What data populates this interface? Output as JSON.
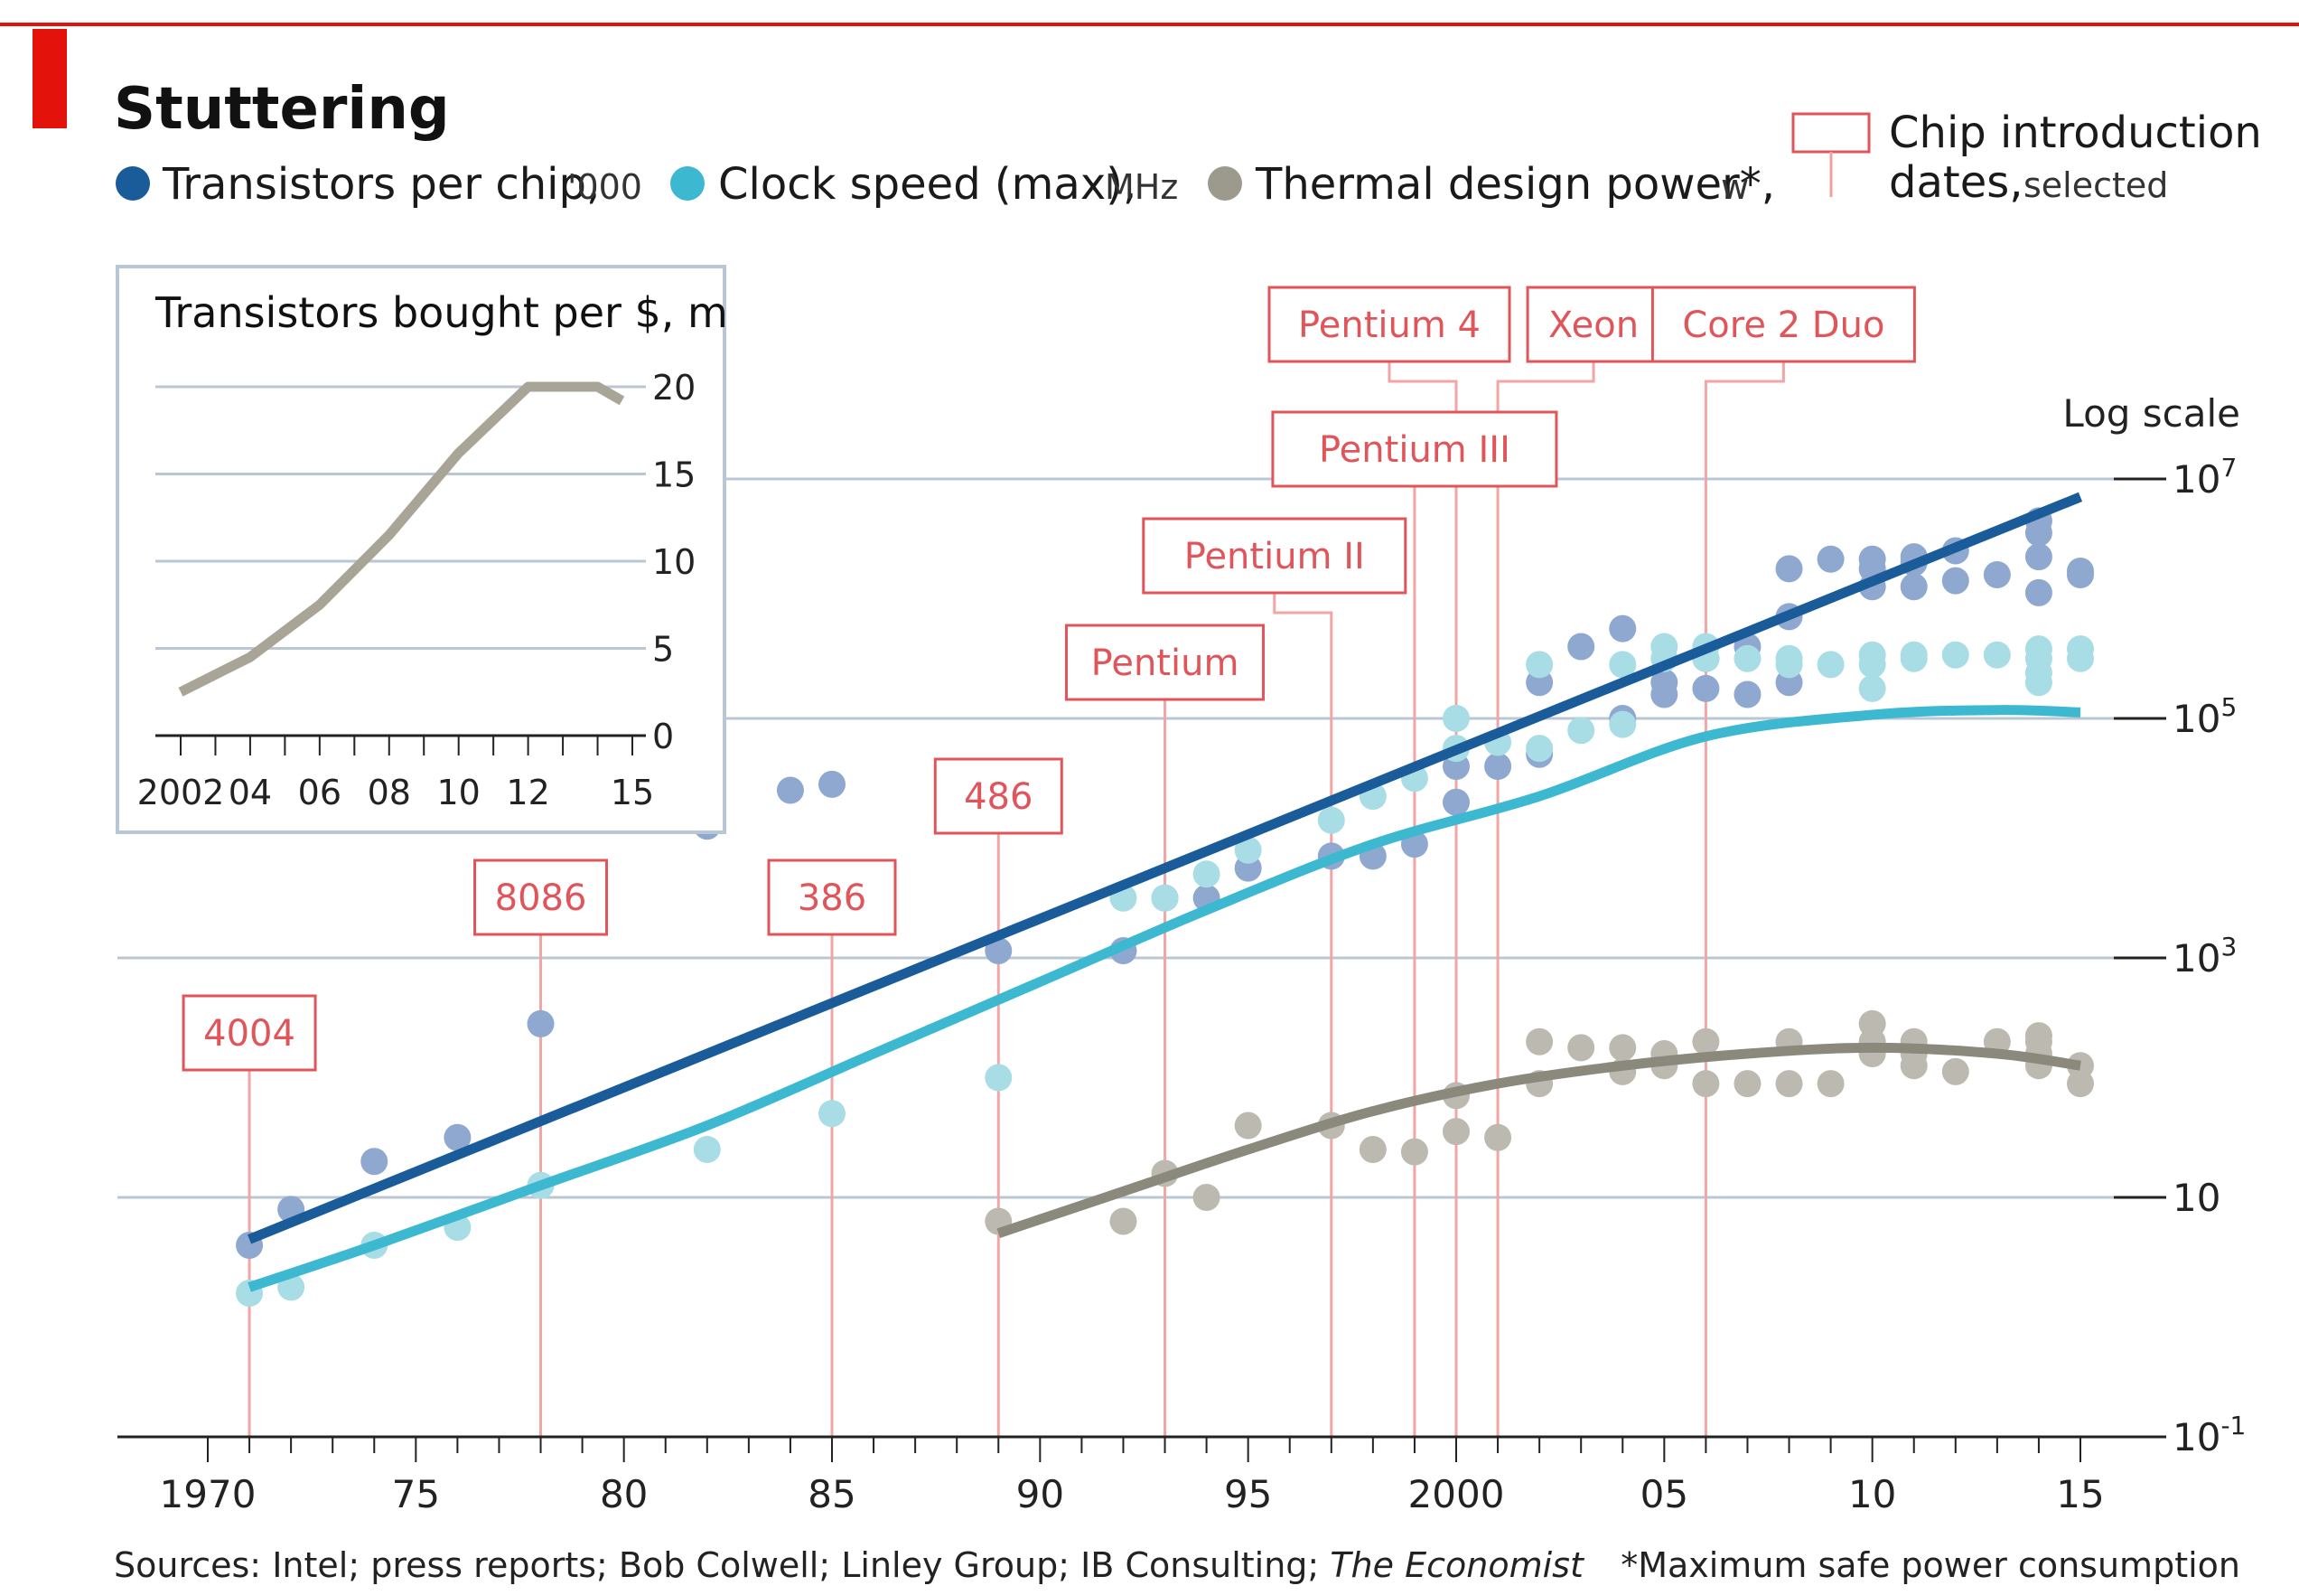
{
  "title": "Stuttering",
  "legend": [
    {
      "label": "Transistors per chip,",
      "unit": "'000",
      "color": "#1a5c9a"
    },
    {
      "label": "Clock speed (max),",
      "unit": "MHz",
      "color": "#3cb8d0"
    },
    {
      "label": "Thermal design power*,",
      "unit": "w",
      "color": "#9b9a8c"
    }
  ],
  "chip_legend": {
    "line1": "Chip introduction",
    "line2_bold": "dates,",
    "line2_rest": "selected"
  },
  "log_scale_label": "Log scale",
  "source": "Sources: Intel; press reports; Bob Colwell; Linley Group; IB Consulting;",
  "source_italic": "The Economist",
  "footnote": "*Maximum safe power consumption",
  "colors": {
    "accent_red": "#e3120b",
    "chip_red": "#e0555a",
    "grid": "#b8c7d3",
    "transistor_line": "#1a5c9a",
    "transistor_dot": "#8fa8d0",
    "clock_line": "#3cb8d0",
    "clock_dot": "#a8dde6",
    "power_line": "#8a897c",
    "power_dot": "#bcbab0",
    "inset_line": "#a8a597",
    "inset_border": "#b8c7d3"
  },
  "chart_data": [
    {
      "type": "scatter",
      "log_y": true,
      "xlim": [
        1970,
        2015
      ],
      "ylim_exp": [
        -1,
        7
      ],
      "x_ticks": [
        1970,
        1975,
        1980,
        1985,
        1990,
        1995,
        2000,
        2005,
        2010,
        2015
      ],
      "x_tick_labels": [
        "1970",
        "75",
        "80",
        "85",
        "90",
        "95",
        "2000",
        "05",
        "10",
        "15"
      ],
      "y_ticks_exp": [
        -1,
        1,
        3,
        5,
        7
      ],
      "y_tick_labels": [
        {
          "base": "10",
          "exp": "-1"
        },
        {
          "base": "10",
          "exp": ""
        },
        {
          "base": "10",
          "exp": "3"
        },
        {
          "base": "10",
          "exp": "5"
        },
        {
          "base": "10",
          "exp": "7"
        }
      ],
      "chips": [
        {
          "name": "4004",
          "year": 1971
        },
        {
          "name": "8086",
          "year": 1978
        },
        {
          "name": "386",
          "year": 1985
        },
        {
          "name": "486",
          "year": 1989
        },
        {
          "name": "Pentium",
          "year": 1993
        },
        {
          "name": "Pentium II",
          "year": 1997
        },
        {
          "name": "Pentium III",
          "year": 1999
        },
        {
          "name": "Pentium 4",
          "year": 2000
        },
        {
          "name": "Xeon",
          "year": 2001
        },
        {
          "name": "Core 2 Duo",
          "year": 2006
        }
      ],
      "series": [
        {
          "key": "transistors",
          "trend": [
            [
              1971,
              0.65
            ],
            [
              2015,
              6.85
            ]
          ],
          "points": [
            [
              1971,
              0.6
            ],
            [
              1972,
              0.9
            ],
            [
              1974,
              1.3
            ],
            [
              1976,
              1.5
            ],
            [
              1978,
              2.45
            ],
            [
              1982,
              4.1
            ],
            [
              1984,
              4.4
            ],
            [
              1985,
              4.45
            ],
            [
              1989,
              3.06
            ],
            [
              1992,
              3.06
            ],
            [
              1993,
              3.5
            ],
            [
              1994,
              3.5
            ],
            [
              1995,
              3.75
            ],
            [
              1997,
              3.85
            ],
            [
              1998,
              3.85
            ],
            [
              1999,
              3.95
            ],
            [
              2000,
              4.3
            ],
            [
              2000,
              4.6
            ],
            [
              2001,
              4.6
            ],
            [
              2002,
              4.7
            ],
            [
              2002,
              5.3
            ],
            [
              2003,
              5.6
            ],
            [
              2004,
              5.0
            ],
            [
              2004,
              5.75
            ],
            [
              2005,
              5.2
            ],
            [
              2005,
              5.3
            ],
            [
              2006,
              5.25
            ],
            [
              2006,
              5.5
            ],
            [
              2007,
              5.2
            ],
            [
              2007,
              5.6
            ],
            [
              2008,
              5.3
            ],
            [
              2008,
              5.85
            ],
            [
              2008,
              6.25
            ],
            [
              2009,
              6.33
            ],
            [
              2010,
              6.1
            ],
            [
              2010,
              6.25
            ],
            [
              2010,
              6.33
            ],
            [
              2011,
              6.1
            ],
            [
              2011,
              6.3
            ],
            [
              2011,
              6.35
            ],
            [
              2012,
              6.15
            ],
            [
              2012,
              6.4
            ],
            [
              2013,
              6.2
            ],
            [
              2014,
              6.05
            ],
            [
              2014,
              6.35
            ],
            [
              2014,
              6.55
            ],
            [
              2014,
              6.65
            ],
            [
              2015,
              6.2
            ],
            [
              2015,
              6.23
            ]
          ]
        },
        {
          "key": "clock",
          "trend": [
            [
              1971,
              0.25
            ],
            [
              1974,
              0.6
            ],
            [
              1978,
              1.1
            ],
            [
              1982,
              1.6
            ],
            [
              1986,
              2.2
            ],
            [
              1990,
              2.8
            ],
            [
              1994,
              3.4
            ],
            [
              1998,
              3.95
            ],
            [
              2002,
              4.35
            ],
            [
              2006,
              4.85
            ],
            [
              2010,
              5.03
            ],
            [
              2013,
              5.07
            ],
            [
              2015,
              5.05
            ]
          ],
          "points": [
            [
              1971,
              0.2
            ],
            [
              1972,
              0.25
            ],
            [
              1974,
              0.6
            ],
            [
              1976,
              0.75
            ],
            [
              1978,
              1.1
            ],
            [
              1982,
              1.4
            ],
            [
              1985,
              1.7
            ],
            [
              1989,
              2.0
            ],
            [
              1992,
              3.5
            ],
            [
              1993,
              3.5
            ],
            [
              1994,
              3.7
            ],
            [
              1995,
              3.9
            ],
            [
              1997,
              4.15
            ],
            [
              1998,
              4.35
            ],
            [
              1999,
              4.5
            ],
            [
              2000,
              4.75
            ],
            [
              2000,
              5.0
            ],
            [
              2001,
              4.8
            ],
            [
              2002,
              4.75
            ],
            [
              2002,
              5.45
            ],
            [
              2003,
              4.9
            ],
            [
              2004,
              4.95
            ],
            [
              2004,
              5.45
            ],
            [
              2005,
              5.5
            ],
            [
              2005,
              5.6
            ],
            [
              2006,
              5.5
            ],
            [
              2006,
              5.6
            ],
            [
              2007,
              5.5
            ],
            [
              2008,
              5.45
            ],
            [
              2008,
              5.5
            ],
            [
              2009,
              5.45
            ],
            [
              2010,
              5.25
            ],
            [
              2010,
              5.45
            ],
            [
              2010,
              5.53
            ],
            [
              2011,
              5.5
            ],
            [
              2011,
              5.53
            ],
            [
              2012,
              5.53
            ],
            [
              2013,
              5.53
            ],
            [
              2014,
              5.3
            ],
            [
              2014,
              5.38
            ],
            [
              2014,
              5.5
            ],
            [
              2014,
              5.58
            ],
            [
              2015,
              5.5
            ],
            [
              2015,
              5.58
            ]
          ]
        },
        {
          "key": "power",
          "trend": [
            [
              1989,
              0.7
            ],
            [
              1992,
              1.05
            ],
            [
              1995,
              1.4
            ],
            [
              1998,
              1.72
            ],
            [
              2001,
              1.95
            ],
            [
              2004,
              2.1
            ],
            [
              2007,
              2.2
            ],
            [
              2010,
              2.25
            ],
            [
              2013,
              2.2
            ],
            [
              2015,
              2.1
            ]
          ],
          "points": [
            [
              1989,
              0.8
            ],
            [
              1992,
              0.8
            ],
            [
              1993,
              1.2
            ],
            [
              1994,
              1.0
            ],
            [
              1995,
              1.6
            ],
            [
              1997,
              1.6
            ],
            [
              1998,
              1.4
            ],
            [
              1999,
              1.38
            ],
            [
              2000,
              1.55
            ],
            [
              2000,
              1.85
            ],
            [
              2001,
              1.5
            ],
            [
              2002,
              1.95
            ],
            [
              2002,
              2.3
            ],
            [
              2003,
              2.25
            ],
            [
              2004,
              2.05
            ],
            [
              2004,
              2.25
            ],
            [
              2005,
              2.1
            ],
            [
              2005,
              2.2
            ],
            [
              2006,
              1.95
            ],
            [
              2006,
              2.3
            ],
            [
              2007,
              1.95
            ],
            [
              2008,
              1.95
            ],
            [
              2008,
              2.3
            ],
            [
              2009,
              1.95
            ],
            [
              2010,
              2.2
            ],
            [
              2010,
              2.3
            ],
            [
              2010,
              2.45
            ],
            [
              2011,
              2.1
            ],
            [
              2011,
              2.2
            ],
            [
              2011,
              2.3
            ],
            [
              2012,
              2.05
            ],
            [
              2013,
              2.3
            ],
            [
              2014,
              2.1
            ],
            [
              2014,
              2.2
            ],
            [
              2014,
              2.3
            ],
            [
              2014,
              2.35
            ],
            [
              2015,
              1.95
            ],
            [
              2015,
              2.1
            ]
          ]
        }
      ]
    },
    {
      "type": "line",
      "title": "Transistors bought per $, m",
      "xlim": [
        2002,
        2015
      ],
      "ylim": [
        0,
        20
      ],
      "x_ticks": [
        2002,
        2004,
        2006,
        2008,
        2010,
        2012,
        2015
      ],
      "x_tick_labels": [
        "2002",
        "04",
        "06",
        "08",
        "10",
        "12",
        "15"
      ],
      "y_ticks": [
        0,
        5,
        10,
        15,
        20
      ],
      "y_tick_labels": [
        "0",
        "5",
        "10",
        "15",
        "20"
      ],
      "x": [
        2002,
        2004,
        2006,
        2008,
        2010,
        2012,
        2013,
        2014,
        2014.7
      ],
      "y": [
        2.5,
        4.5,
        7.5,
        11.5,
        16.2,
        20,
        20,
        20,
        19.2
      ]
    }
  ]
}
